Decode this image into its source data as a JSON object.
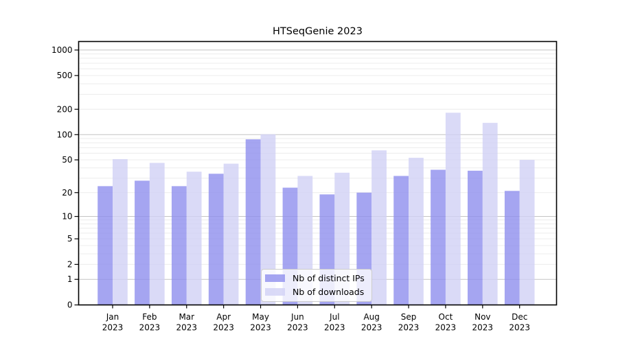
{
  "title": "HTSeqGenie 2023",
  "legend": {
    "items": [
      {
        "label": "Nb of distinct IPs",
        "color": "#8f8fee"
      },
      {
        "label": "Nb of downloads",
        "color": "#d1d1f5"
      }
    ]
  },
  "chart_data": {
    "type": "bar",
    "title": "HTSeqGenie 2023",
    "categories": [
      "Jan",
      "Feb",
      "Mar",
      "Apr",
      "May",
      "Jun",
      "Jul",
      "Aug",
      "Sep",
      "Oct",
      "Nov",
      "Dec"
    ],
    "year": "2023",
    "series": [
      {
        "name": "Nb of distinct IPs",
        "color": "#8f8fee",
        "opacity": 0.8,
        "values": [
          24,
          28,
          24,
          34,
          88,
          23,
          19,
          20,
          32,
          38,
          37,
          21
        ]
      },
      {
        "name": "Nb of downloads",
        "color": "#d1d1f5",
        "opacity": 0.8,
        "values": [
          51,
          46,
          36,
          45,
          101,
          32,
          35,
          65,
          53,
          182,
          138,
          50
        ]
      }
    ],
    "xlabel": "",
    "ylabel": "",
    "y_scale": "log1p",
    "y_ticks": [
      0,
      1,
      2,
      5,
      10,
      20,
      50,
      100,
      200,
      500,
      1000
    ],
    "y_major_gridlines": [
      1,
      10,
      100,
      1000
    ],
    "ylim": [
      0,
      1260
    ],
    "grid": "on",
    "legend_position": "lower-center",
    "colors": {
      "major_grid": "#c3c3c3",
      "minor_grid": "#ececec",
      "axis": "#000000",
      "background": "#ffffff"
    }
  }
}
